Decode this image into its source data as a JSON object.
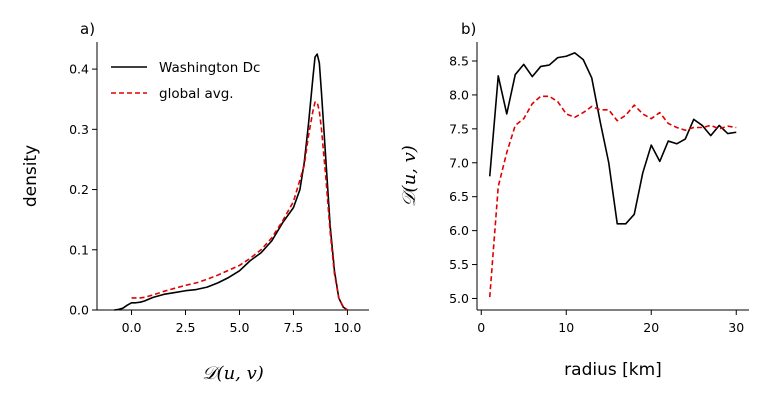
{
  "chart_data": [
    {
      "panel": "a)",
      "type": "line",
      "xlabel": "𝒟(u, v)",
      "ylabel": "density",
      "xlim": [
        -1.6,
        11.0
      ],
      "ylim": [
        0,
        0.445
      ],
      "xticks": [
        0.0,
        2.5,
        5.0,
        7.5,
        10.0
      ],
      "xtick_labels": [
        "0.0",
        "2.5",
        "5.0",
        "7.5",
        "10.0"
      ],
      "yticks": [
        0.0,
        0.1,
        0.2,
        0.3,
        0.4
      ],
      "ytick_labels": [
        "0.0",
        "0.1",
        "0.2",
        "0.3",
        "0.4"
      ],
      "legend_position": "top-left",
      "series": [
        {
          "name": "Washington Dc",
          "color": "#000000",
          "dash": "solid",
          "x": [
            -0.8,
            -0.6,
            -0.4,
            -0.2,
            0.0,
            0.2,
            0.4,
            0.6,
            0.8,
            1.0,
            1.5,
            2.0,
            2.5,
            3.0,
            3.5,
            4.0,
            4.5,
            5.0,
            5.5,
            6.0,
            6.5,
            7.0,
            7.5,
            7.8,
            8.0,
            8.2,
            8.4,
            8.5,
            8.6,
            8.7,
            8.8,
            9.0,
            9.2,
            9.4,
            9.6,
            9.8,
            10.0
          ],
          "y": [
            0.0,
            0.001,
            0.003,
            0.008,
            0.012,
            0.012,
            0.013,
            0.015,
            0.018,
            0.021,
            0.026,
            0.029,
            0.032,
            0.034,
            0.038,
            0.045,
            0.054,
            0.065,
            0.082,
            0.095,
            0.115,
            0.145,
            0.17,
            0.2,
            0.245,
            0.31,
            0.385,
            0.42,
            0.425,
            0.41,
            0.36,
            0.25,
            0.14,
            0.065,
            0.02,
            0.005,
            0.0
          ]
        },
        {
          "name": "global avg.",
          "color": "#e00000",
          "dash": "dashed",
          "x": [
            0.0,
            0.2,
            0.4,
            0.6,
            0.8,
            1.0,
            1.5,
            2.0,
            2.5,
            3.0,
            3.5,
            4.0,
            4.5,
            5.0,
            5.5,
            6.0,
            6.5,
            7.0,
            7.5,
            8.0,
            8.2,
            8.4,
            8.5,
            8.6,
            8.7,
            8.8,
            9.0,
            9.2,
            9.4,
            9.6,
            9.8,
            10.0
          ],
          "y": [
            0.02,
            0.02,
            0.02,
            0.021,
            0.023,
            0.025,
            0.031,
            0.036,
            0.041,
            0.045,
            0.051,
            0.058,
            0.066,
            0.074,
            0.086,
            0.1,
            0.12,
            0.148,
            0.18,
            0.24,
            0.29,
            0.33,
            0.345,
            0.345,
            0.33,
            0.3,
            0.22,
            0.13,
            0.06,
            0.02,
            0.006,
            0.0
          ]
        }
      ]
    },
    {
      "panel": "b)",
      "type": "line",
      "xlabel": "radius [km]",
      "ylabel": "𝒟(u, v)",
      "xlim": [
        -0.5,
        31.5
      ],
      "ylim": [
        4.83,
        8.78
      ],
      "xticks": [
        0,
        10,
        20,
        30
      ],
      "xtick_labels": [
        "0",
        "10",
        "20",
        "30"
      ],
      "yticks": [
        5.0,
        5.5,
        6.0,
        6.5,
        7.0,
        7.5,
        8.0,
        8.5
      ],
      "ytick_labels": [
        "5.0",
        "5.5",
        "6.0",
        "6.5",
        "7.0",
        "7.5",
        "8.0",
        "8.5"
      ],
      "series": [
        {
          "name": "Washington Dc",
          "color": "#000000",
          "dash": "solid",
          "x": [
            1,
            2,
            3,
            4,
            5,
            6,
            7,
            8,
            9,
            10,
            11,
            12,
            13,
            14,
            15,
            16,
            17,
            18,
            19,
            20,
            21,
            22,
            23,
            24,
            25,
            26,
            27,
            28,
            29,
            30
          ],
          "y": [
            6.8,
            8.28,
            7.72,
            8.3,
            8.45,
            8.27,
            8.42,
            8.44,
            8.55,
            8.57,
            8.62,
            8.52,
            8.25,
            7.6,
            7.0,
            6.1,
            6.1,
            6.24,
            6.85,
            7.26,
            7.02,
            7.32,
            7.28,
            7.35,
            7.64,
            7.55,
            7.4,
            7.55,
            7.43,
            7.45
          ]
        },
        {
          "name": "global avg.",
          "color": "#e00000",
          "dash": "dashed",
          "x": [
            1,
            2,
            3,
            4,
            5,
            6,
            7,
            8,
            9,
            10,
            11,
            12,
            13,
            14,
            15,
            16,
            17,
            18,
            19,
            20,
            21,
            22,
            23,
            24,
            25,
            26,
            27,
            28,
            29,
            30
          ],
          "y": [
            5.02,
            6.65,
            7.15,
            7.55,
            7.65,
            7.87,
            7.98,
            7.98,
            7.9,
            7.72,
            7.67,
            7.74,
            7.83,
            7.78,
            7.78,
            7.62,
            7.7,
            7.85,
            7.72,
            7.65,
            7.74,
            7.58,
            7.52,
            7.48,
            7.52,
            7.52,
            7.55,
            7.5,
            7.54,
            7.52
          ]
        }
      ]
    }
  ]
}
